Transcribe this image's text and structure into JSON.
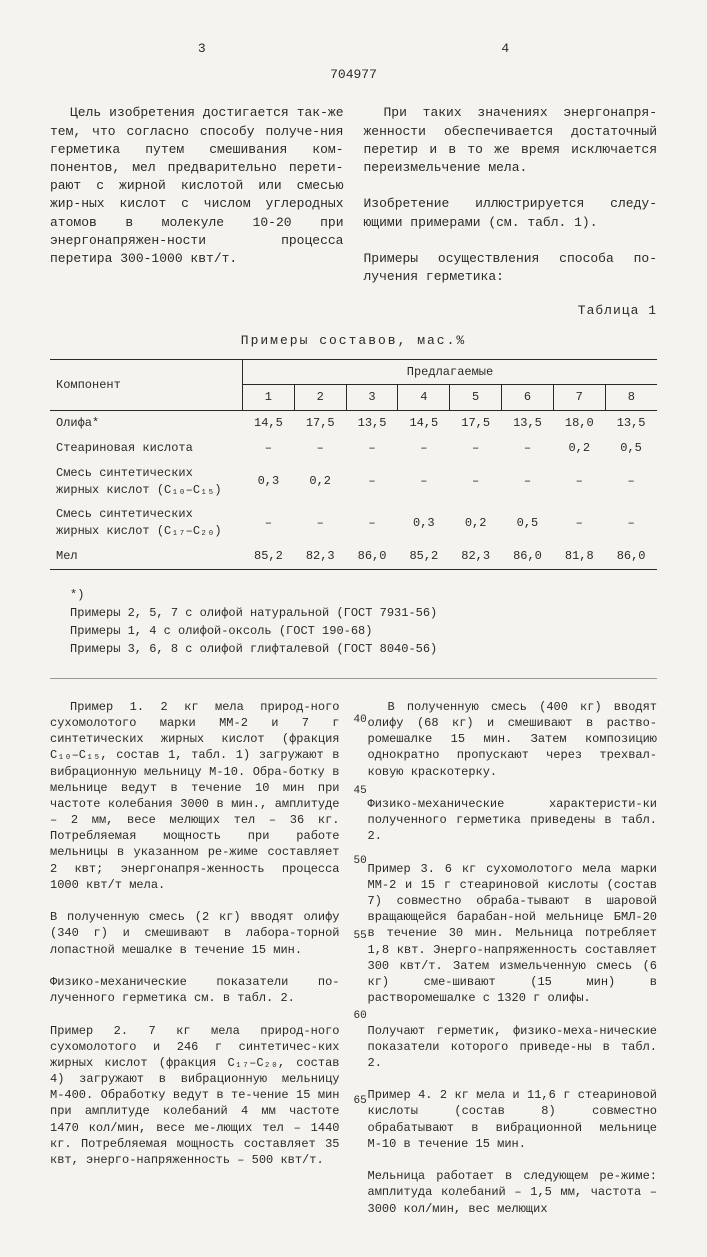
{
  "header": {
    "page_left": "3",
    "page_right": "4",
    "doc_number": "704977"
  },
  "intro": {
    "left": "Цель изобретения достигается так-же тем, что согласно способу получе-ния герметика путем смешивания ком-понентов, мел предварительно перети-рают с жирной кислотой или смесью жир-ных кислот с числом углеродных атомов в молекуле 10-20 при энергонапряжен-ности процесса перетира 300-1000 квт/т.",
    "right": "При таких значениях энергонапря-женности обеспечивается достаточный перетир и в то же время исключается переизмельчение мела.\n\nИзобретение иллюстрируется следу-ющими примерами (см. табл. 1).\n\nПримеры осуществления способа по-лучения герметика:"
  },
  "table": {
    "label": "Таблица 1",
    "title": "Примеры составов, мас.%",
    "header_component": "Компонент",
    "header_group": "Предлагаемые",
    "cols": [
      "1",
      "2",
      "3",
      "4",
      "5",
      "6",
      "7",
      "8"
    ],
    "rows": [
      {
        "name": "Олифа*",
        "v": [
          "14,5",
          "17,5",
          "13,5",
          "14,5",
          "17,5",
          "13,5",
          "18,0",
          "13,5"
        ]
      },
      {
        "name": "Стеариновая кислота",
        "v": [
          "–",
          "–",
          "–",
          "–",
          "–",
          "–",
          "0,2",
          "0,5"
        ]
      },
      {
        "name": "Смесь синтетических жирных кислот (C₁₀–C₁₅)",
        "v": [
          "0,3",
          "0,2",
          "–",
          "–",
          "–",
          "–",
          "–",
          "–"
        ]
      },
      {
        "name": "Смесь синтетических жирных кислот (C₁₇–C₂₀)",
        "v": [
          "–",
          "–",
          "–",
          "0,3",
          "0,2",
          "0,5",
          "–",
          "–"
        ]
      },
      {
        "name": "Мел",
        "v": [
          "85,2",
          "82,3",
          "86,0",
          "85,2",
          "82,3",
          "86,0",
          "81,8",
          "86,0"
        ]
      }
    ]
  },
  "notes": {
    "star": "*)",
    "n1": "Примеры 2, 5, 7 с олифой натуральной (ГОСТ 7931-56)",
    "n2": "Примеры 1, 4 с олифой-оксоль (ГОСТ 190-68)",
    "n3": "Примеры 3, 6, 8 с олифой глифталевой (ГОСТ 8040-56)"
  },
  "body_left": "Пример 1. 2 кг мела природ-ного сухомолотого марки ММ-2 и 7 г синтетических жирных кислот (фракция C₁₀–C₁₅, состав 1, табл. 1) загружают в вибрационную мельницу М-10. Обра-ботку в мельнице ведут в течение 10 мин при частоте колебания 3000 в мин., амплитуде – 2 мм, весе мелющих тел – 36 кг. Потребляемая мощность при работе мельницы в указанном ре-жиме составляет 2 квт; энергонапря-женность процесса 1000 квт/т мела.\n\nВ полученную смесь (2 кг) вводят олифу (340 г) и смешивают в лабора-торной лопастной мешалке в течение 15 мин.\n\nФизико-механические показатели по-лученного герметика см. в табл. 2.\n\nПример 2. 7 кг мела природ-ного сухомолотого и 246 г синтетичес-ких жирных кислот (фракция C₁₇–C₂₀, состав 4) загружают в вибрационную мельницу М-400. Обработку ведут в те-чение 15 мин при амплитуде колебаний 4 мм частоте 1470 кол/мин, весе ме-лющих тел – 1440 кг. Потребляемая мощность составляет 35 квт, энерго-напряженность – 500 квт/т.",
  "body_right": "В полученную смесь (400 кг) вводят олифу (68 кг) и смешивают в раство-ромешалке 15 мин. Затем композицию однократно пропускают через трехвал-ковую краскотерку.\n\nФизико-механические характеристи-ки полученного герметика приведены в табл. 2.\n\nПример 3. 6 кг сухомолотого мела марки ММ-2 и 15 г стеариновой кислоты (состав 7) совместно обраба-тывают в шаровой вращающейся барабан-ной мельнице БМЛ-20 в течение 30 мин. Мельница потребляет 1,8 квт. Энерго-напряженность составляет 300 квт/т. Затем измельченную смесь (6 кг) сме-шивают (15 мин) в растворомешалке с 1320 г олифы.\n\nПолучают герметик, физико-меха-нические показатели которого приведе-ны в табл. 2.\n\nПример 4. 2 кг мела и 11,6 г стеариновой кислоты (состав 8) совместно обрабатывают в вибрационной мельнице М-10 в течение 15 мин.\n\nМельница работает в следующем ре-жиме: амплитуда колебаний – 1,5 мм, частота – 3000 кол/мин, вес мелющих",
  "line_nums": [
    "40",
    "45",
    "50",
    "55",
    "60",
    "65"
  ]
}
